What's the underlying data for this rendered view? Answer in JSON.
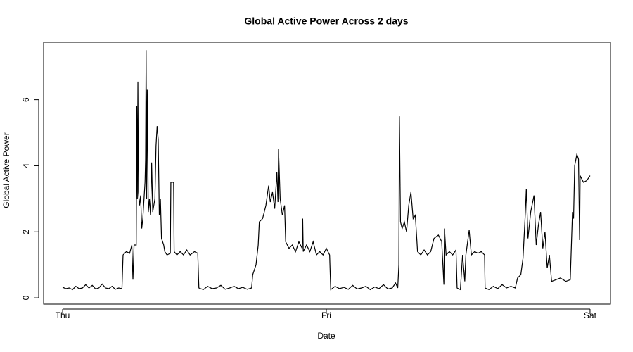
{
  "chart_data": {
    "type": "line",
    "title": "Global Active Power Across 2 days",
    "x_label": "Date",
    "y_label": "Global Active Power",
    "color": "#000000",
    "xlim": [
      -1.73,
      49.86
    ],
    "ylim": [
      -0.19,
      7.74
    ],
    "xticks": [
      {
        "value": 0,
        "label": "Thu"
      },
      {
        "value": 24,
        "label": "Fri"
      },
      {
        "value": 48,
        "label": "Sat"
      }
    ],
    "yticks": [
      0,
      2,
      4,
      6
    ],
    "x": [
      0,
      0.3,
      0.6,
      0.9,
      1.2,
      1.5,
      1.8,
      2.1,
      2.4,
      2.7,
      3.0,
      3.3,
      3.6,
      3.9,
      4.2,
      4.5,
      4.8,
      5.1,
      5.4,
      5.5,
      5.8,
      6.1,
      6.3,
      6.4,
      6.5,
      6.7,
      6.75,
      6.8,
      6.85,
      6.9,
      7.0,
      7.1,
      7.2,
      7.3,
      7.5,
      7.55,
      7.6,
      7.65,
      7.7,
      7.8,
      7.9,
      8.0,
      8.1,
      8.2,
      8.4,
      8.5,
      8.6,
      8.7,
      8.8,
      8.9,
      9.0,
      9.2,
      9.3,
      9.5,
      9.8,
      9.85,
      10.1,
      10.15,
      10.4,
      10.7,
      11.0,
      11.3,
      11.6,
      12.0,
      12.3,
      12.4,
      12.8,
      13.2,
      13.6,
      14.0,
      14.4,
      14.8,
      15.2,
      15.6,
      16.0,
      16.4,
      16.8,
      17.2,
      17.3,
      17.6,
      17.8,
      17.9,
      18.2,
      18.5,
      18.75,
      18.9,
      19.1,
      19.3,
      19.5,
      19.6,
      19.65,
      19.8,
      20.0,
      20.2,
      20.3,
      20.6,
      20.9,
      21.2,
      21.5,
      21.8,
      21.85,
      21.9,
      22.2,
      22.5,
      22.8,
      23.1,
      23.4,
      23.7,
      24.0,
      24.3,
      24.4,
      24.8,
      25.2,
      25.6,
      26.0,
      26.4,
      26.8,
      27.2,
      27.6,
      28.0,
      28.4,
      28.8,
      29.2,
      29.6,
      30.0,
      30.3,
      30.5,
      30.6,
      30.65,
      30.75,
      30.9,
      31.1,
      31.3,
      31.5,
      31.7,
      31.9,
      32.1,
      32.3,
      32.6,
      32.9,
      33.2,
      33.5,
      33.8,
      34.2,
      34.5,
      34.7,
      34.75,
      34.9,
      35.2,
      35.5,
      35.8,
      35.9,
      36.2,
      36.4,
      36.6,
      36.7,
      37.0,
      37.2,
      37.5,
      37.8,
      38.1,
      38.4,
      38.45,
      38.8,
      39.2,
      39.6,
      40.0,
      40.4,
      40.8,
      41.2,
      41.4,
      41.7,
      41.9,
      42.1,
      42.2,
      42.35,
      42.6,
      42.9,
      43.1,
      43.3,
      43.5,
      43.7,
      43.9,
      44.1,
      44.3,
      44.5,
      44.9,
      45.3,
      45.8,
      46.2,
      46.4,
      46.5,
      46.6,
      46.8,
      46.95,
      47.05,
      47.1,
      47.4,
      47.7,
      48.0
    ],
    "values": [
      0.32,
      0.28,
      0.3,
      0.25,
      0.35,
      0.28,
      0.3,
      0.4,
      0.3,
      0.38,
      0.27,
      0.3,
      0.42,
      0.3,
      0.28,
      0.35,
      0.26,
      0.3,
      0.28,
      1.3,
      1.4,
      1.35,
      1.6,
      0.55,
      1.6,
      1.6,
      5.8,
      3.0,
      6.55,
      3.2,
      2.8,
      3.1,
      2.1,
      2.4,
      3.5,
      4.2,
      7.5,
      3.0,
      6.3,
      2.6,
      3.0,
      2.5,
      4.1,
      2.6,
      3.0,
      4.6,
      5.2,
      4.8,
      2.5,
      3.0,
      1.8,
      1.6,
      1.4,
      1.3,
      1.35,
      3.5,
      3.5,
      1.4,
      1.3,
      1.4,
      1.3,
      1.45,
      1.3,
      1.4,
      1.35,
      0.3,
      0.25,
      0.35,
      0.28,
      0.3,
      0.38,
      0.26,
      0.3,
      0.35,
      0.28,
      0.32,
      0.26,
      0.3,
      0.7,
      1.0,
      1.6,
      2.3,
      2.4,
      2.8,
      3.4,
      2.9,
      3.2,
      2.7,
      3.8,
      2.9,
      4.5,
      3.0,
      2.5,
      2.8,
      1.7,
      1.5,
      1.6,
      1.4,
      1.7,
      1.5,
      2.4,
      1.4,
      1.6,
      1.4,
      1.7,
      1.3,
      1.4,
      1.3,
      1.5,
      1.3,
      0.25,
      0.35,
      0.28,
      0.32,
      0.26,
      0.38,
      0.27,
      0.3,
      0.35,
      0.25,
      0.33,
      0.28,
      0.4,
      0.27,
      0.3,
      0.45,
      0.3,
      1.0,
      5.5,
      2.3,
      2.1,
      2.3,
      2.0,
      2.8,
      3.2,
      2.4,
      2.5,
      1.4,
      1.3,
      1.45,
      1.3,
      1.4,
      1.8,
      1.9,
      1.7,
      0.4,
      2.1,
      1.3,
      1.4,
      1.3,
      1.45,
      0.3,
      0.25,
      1.3,
      0.5,
      1.3,
      2.05,
      1.3,
      1.4,
      1.35,
      1.4,
      1.3,
      0.3,
      0.25,
      0.35,
      0.28,
      0.4,
      0.3,
      0.35,
      0.3,
      0.6,
      0.7,
      1.2,
      2.5,
      3.3,
      1.8,
      2.6,
      3.1,
      1.6,
      2.2,
      2.6,
      1.5,
      2.0,
      0.9,
      1.3,
      0.5,
      0.55,
      0.6,
      0.5,
      0.55,
      2.6,
      2.4,
      4.0,
      4.35,
      4.2,
      1.75,
      3.7,
      3.5,
      3.55,
      3.7
    ]
  }
}
